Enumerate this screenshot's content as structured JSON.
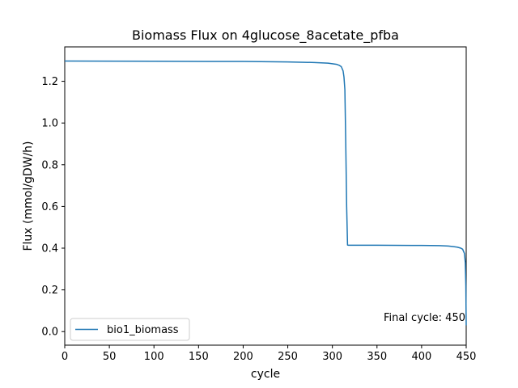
{
  "chart_data": {
    "type": "line",
    "title": "Biomass Flux on 4glucose_8acetate_pfba",
    "xlabel": "cycle",
    "ylabel": "Flux (mmol/gDW/h)",
    "xlim": [
      0,
      450
    ],
    "ylim": [
      -0.065,
      1.365
    ],
    "xticks": [
      0,
      50,
      100,
      150,
      200,
      250,
      300,
      350,
      400,
      450
    ],
    "yticks": [
      0.0,
      0.2,
      0.4,
      0.6,
      0.8,
      1.0,
      1.2
    ],
    "grid": false,
    "legend_position": "lower-left",
    "annotation": "Final cycle: 450",
    "series": [
      {
        "name": "bio1_biomass",
        "color": "#1f77b4",
        "x": [
          0,
          100,
          200,
          250,
          280,
          295,
          300,
          305,
          308,
          310,
          312,
          313,
          314,
          315,
          316,
          317,
          318,
          320,
          350,
          400,
          420,
          430,
          435,
          440,
          444,
          446,
          448,
          449,
          449.6,
          450
        ],
        "y": [
          1.297,
          1.296,
          1.295,
          1.293,
          1.29,
          1.287,
          1.284,
          1.281,
          1.276,
          1.27,
          1.25,
          1.22,
          1.16,
          0.9,
          0.6,
          0.415,
          0.414,
          0.414,
          0.414,
          0.413,
          0.412,
          0.41,
          0.408,
          0.405,
          0.4,
          0.395,
          0.375,
          0.33,
          0.22,
          0.03
        ]
      }
    ]
  }
}
